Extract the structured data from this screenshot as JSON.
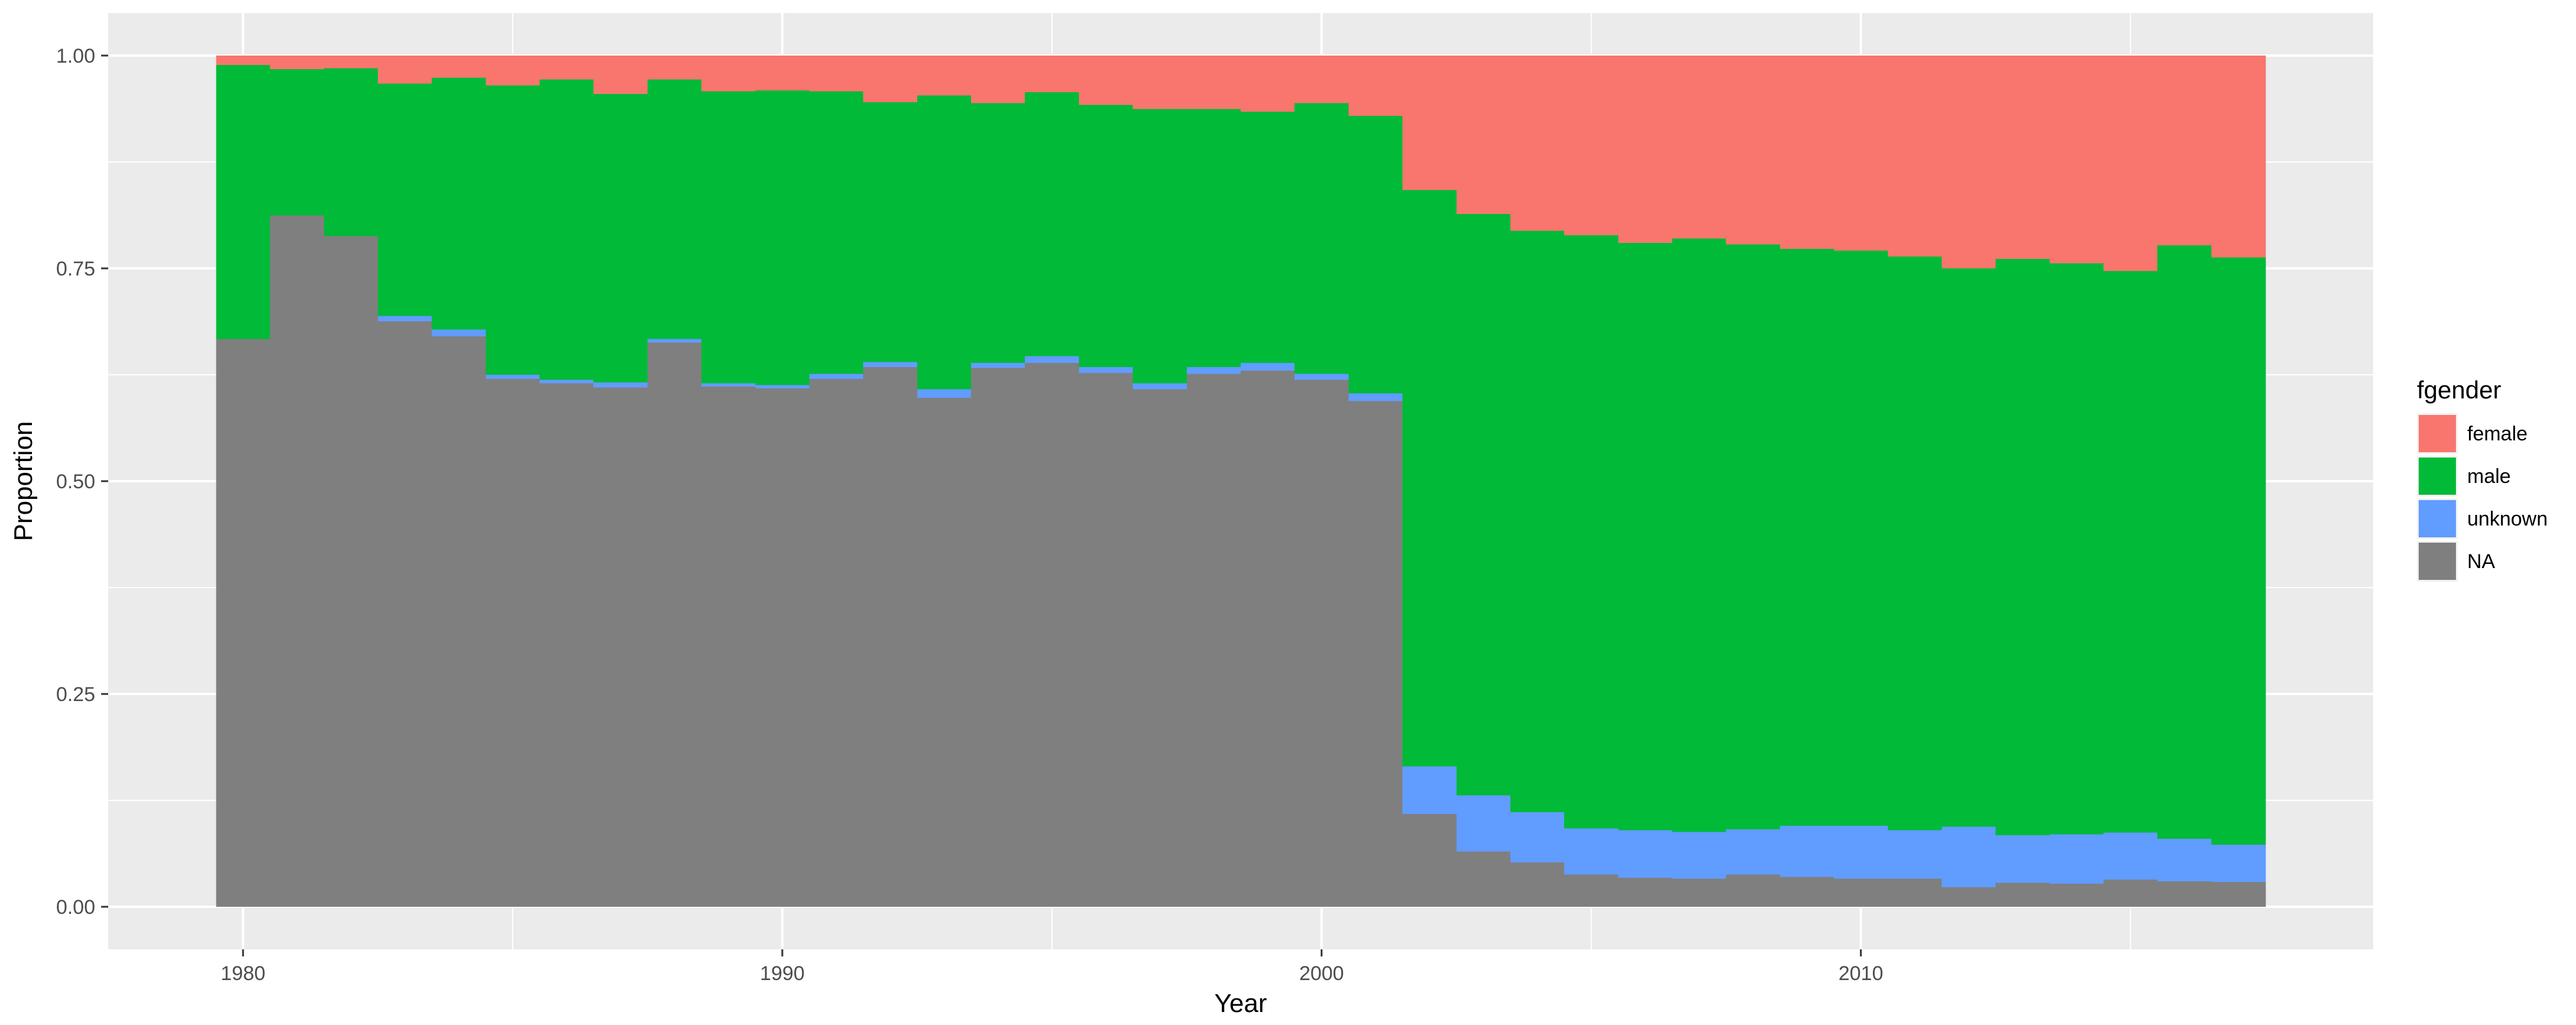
{
  "chart_data": {
    "type": "bar",
    "stacking": "fill",
    "x": [
      1980,
      1981,
      1982,
      1983,
      1984,
      1985,
      1986,
      1987,
      1988,
      1989,
      1990,
      1991,
      1992,
      1993,
      1994,
      1995,
      1996,
      1997,
      1998,
      1999,
      2000,
      2001,
      2002,
      2003,
      2004,
      2005,
      2006,
      2007,
      2008,
      2009,
      2010,
      2011,
      2012,
      2013,
      2014,
      2015,
      2016,
      2017
    ],
    "series": [
      {
        "name": "NA",
        "color": "#7F7F7F",
        "values": [
          0.667,
          0.812,
          0.788,
          0.688,
          0.67,
          0.62,
          0.615,
          0.61,
          0.663,
          0.611,
          0.609,
          0.62,
          0.634,
          0.598,
          0.633,
          0.639,
          0.627,
          0.608,
          0.626,
          0.63,
          0.619,
          0.594,
          0.109,
          0.065,
          0.052,
          0.038,
          0.034,
          0.033,
          0.038,
          0.035,
          0.033,
          0.033,
          0.023,
          0.028,
          0.027,
          0.032,
          0.03,
          0.029
        ]
      },
      {
        "name": "unknown",
        "color": "#619CFF",
        "values": [
          0.0,
          0.0,
          0.0,
          0.006,
          0.008,
          0.005,
          0.004,
          0.006,
          0.004,
          0.004,
          0.004,
          0.006,
          0.006,
          0.01,
          0.006,
          0.008,
          0.007,
          0.007,
          0.008,
          0.009,
          0.007,
          0.009,
          0.056,
          0.066,
          0.059,
          0.054,
          0.056,
          0.055,
          0.053,
          0.06,
          0.062,
          0.057,
          0.071,
          0.056,
          0.058,
          0.055,
          0.05,
          0.044
        ]
      },
      {
        "name": "male",
        "color": "#00BA38",
        "values": [
          0.322,
          0.172,
          0.197,
          0.273,
          0.296,
          0.34,
          0.353,
          0.339,
          0.305,
          0.343,
          0.346,
          0.332,
          0.305,
          0.345,
          0.305,
          0.31,
          0.308,
          0.322,
          0.303,
          0.295,
          0.318,
          0.326,
          0.677,
          0.683,
          0.683,
          0.697,
          0.69,
          0.697,
          0.687,
          0.678,
          0.676,
          0.674,
          0.656,
          0.677,
          0.671,
          0.66,
          0.697,
          0.69
        ]
      },
      {
        "name": "female",
        "color": "#F8766D",
        "values": [
          0.011,
          0.016,
          0.015,
          0.033,
          0.026,
          0.035,
          0.028,
          0.045,
          0.028,
          0.042,
          0.041,
          0.042,
          0.055,
          0.047,
          0.056,
          0.043,
          0.058,
          0.063,
          0.063,
          0.066,
          0.056,
          0.071,
          0.158,
          0.186,
          0.206,
          0.211,
          0.22,
          0.215,
          0.222,
          0.227,
          0.229,
          0.236,
          0.25,
          0.239,
          0.244,
          0.253,
          0.223,
          0.237
        ]
      }
    ],
    "xlabel": "Year",
    "ylabel": "Proportion",
    "xlim": [
      1977.5,
      2019.5
    ],
    "ylim": [
      -0.05,
      1.05
    ],
    "x_ticks": [
      1980,
      1990,
      2000,
      2010
    ],
    "x_tick_labels": [
      "1980",
      "1990",
      "2000",
      "2010"
    ],
    "y_ticks": [
      0.0,
      0.25,
      0.5,
      0.75,
      1.0
    ],
    "y_tick_labels": [
      "0.00",
      "0.25",
      "0.50",
      "0.75",
      "1.00"
    ],
    "grid": true,
    "panel_background": "#EBEBEB",
    "grid_color": "#FFFFFF",
    "legend": {
      "title": "fgender",
      "placement": "right",
      "entries": [
        "female",
        "male",
        "unknown",
        "NA"
      ],
      "colors": [
        "#F8766D",
        "#00BA38",
        "#619CFF",
        "#7F7F7F"
      ]
    }
  }
}
